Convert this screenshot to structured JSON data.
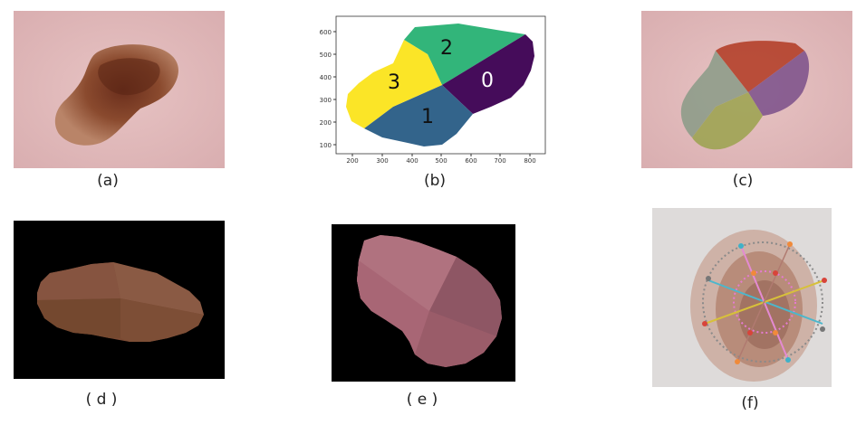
{
  "captions": {
    "a": "(a)",
    "b": "(b)",
    "c": "(c)",
    "d": "( d )",
    "e": "( e )",
    "f": "(f)"
  },
  "segment_plot": {
    "segment_labels": [
      "0",
      "1",
      "2",
      "3"
    ],
    "x_ticks": [
      "200",
      "300",
      "400",
      "500",
      "600",
      "700",
      "800"
    ],
    "y_ticks": [
      "100",
      "200",
      "300",
      "400",
      "500",
      "600"
    ],
    "colors": {
      "seg0": "#450c5a",
      "seg1": "#33648b",
      "seg2": "#32b57a",
      "seg3": "#fbe527"
    }
  }
}
